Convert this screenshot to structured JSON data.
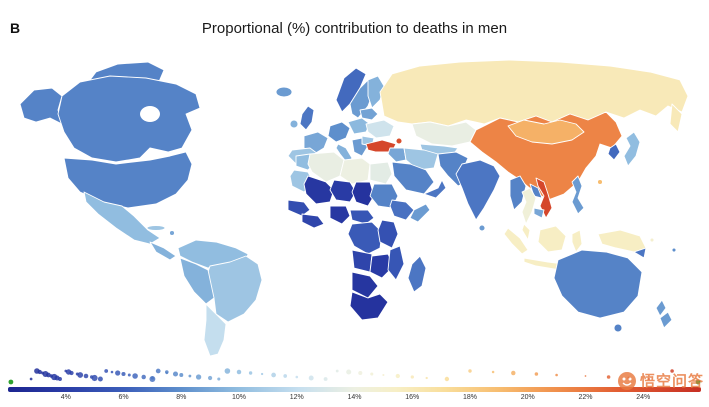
{
  "figure": {
    "panel_label": "B",
    "title": "Proportional (%) contribution to deaths in men"
  },
  "watermark": {
    "text": "悟空问答"
  },
  "chart_data": {
    "type": "heatmap",
    "subtype": "world-choropleth",
    "title": "Proportional (%) contribution to deaths in men",
    "unit": "%",
    "legend_position": "bottom",
    "colorbar": {
      "min": 2,
      "max": 26,
      "ticks": [
        "4%",
        "6%",
        "8%",
        "10%",
        "12%",
        "14%",
        "16%",
        "18%",
        "20%",
        "22%",
        "24%"
      ],
      "tick_values": [
        4,
        6,
        8,
        10,
        12,
        14,
        16,
        18,
        20,
        22,
        24
      ],
      "stops": [
        {
          "t": 0,
          "c": "#1C2590"
        },
        {
          "t": 0.08,
          "c": "#2A3CA6"
        },
        {
          "t": 0.17,
          "c": "#3C5FBA"
        },
        {
          "t": 0.25,
          "c": "#5E8FCC"
        },
        {
          "t": 0.33,
          "c": "#8FBCDF"
        },
        {
          "t": 0.42,
          "c": "#C6DFEF"
        },
        {
          "t": 0.5,
          "c": "#EDF0E2"
        },
        {
          "t": 0.56,
          "c": "#F7EFC6"
        },
        {
          "t": 0.63,
          "c": "#F9DE9B"
        },
        {
          "t": 0.71,
          "c": "#F7BC6F"
        },
        {
          "t": 0.79,
          "c": "#F0904C"
        },
        {
          "t": 0.88,
          "c": "#E25E33"
        },
        {
          "t": 1,
          "c": "#C62F23"
        }
      ],
      "end_marker_color": "#2FA12F"
    },
    "region_pct": {
      "greenland": 7.5,
      "alaska": 7.5,
      "canada": 7.5,
      "usa": 7.5,
      "mexico": 10,
      "central-america": 9.5,
      "cuba": 10.5,
      "hispaniola": 9,
      "colombia-venezuela": 10,
      "brazil": 10.5,
      "peru-bolivia": 9.5,
      "argentina-chile": 12,
      "iceland": 8.5,
      "uk": 7,
      "ireland": 9.5,
      "norway": 6.5,
      "sweden": 8.5,
      "finland": 9.5,
      "france": 9,
      "spain": 10.5,
      "germany": 8,
      "italy": 9.5,
      "balkans": 8.5,
      "poland": 9.8,
      "ukraine": 12.5,
      "belarus": 8.8,
      "romania": 10.5,
      "turkey": 24.5,
      "caucasus": 24,
      "russia": 16,
      "kazakhstan": 13.8,
      "central-asia": 10.5,
      "iraq-syria": 9,
      "iran": 10.5,
      "saudi-arabia": 7.5,
      "yemen-oman": 7,
      "afghanistan-pakistan": 7.5,
      "india": 7,
      "sri-lanka": 8.5,
      "china": 21.5,
      "mongolia": 19.5,
      "korea": 6.5,
      "japan": 10,
      "taiwan": 19,
      "myanmar": 7.5,
      "thailand": 14.5,
      "laos": 7.5,
      "vietnam": 24.5,
      "cambodia": 9,
      "malaysia": 15.5,
      "indonesia": 15.5,
      "new-guinea": 15.5,
      "png-se": 7,
      "philippines": 8.5,
      "morocco": 10,
      "algeria": 13.8,
      "libya": 14,
      "egypt": 13.5,
      "mauritania": 10.5,
      "mali": 3.5,
      "niger": 3.8,
      "chad": 3.2,
      "sudan": 7.5,
      "ethiopia": 6.8,
      "somalia": 8.5,
      "senegal-guinea": 5,
      "ghana-ivory": 4.5,
      "nigeria": 3.6,
      "cameroon-car": 5.5,
      "drc": 5.8,
      "east-africa": 5.2,
      "angola": 4.5,
      "zambia-zimbabwe": 3.8,
      "mozambique": 5.5,
      "namibia-botswana": 3.4,
      "south-africa": 3.2,
      "madagascar": 7,
      "australia": 7.5,
      "tasmania": 7.5,
      "new-zealand": 8.5,
      "solomon": 15,
      "fiji": 8
    },
    "distribution_pct": [
      2.8,
      3,
      3.1,
      3.2,
      3.3,
      3.4,
      3.5,
      3.6,
      3.7,
      3.8,
      4,
      4.1,
      4.2,
      4.4,
      4.5,
      4.7,
      4.9,
      5,
      5.2,
      5.4,
      5.6,
      5.8,
      6,
      6.2,
      6.4,
      6.7,
      7,
      7,
      7.2,
      7.5,
      7.5,
      7.8,
      8,
      8.3,
      8.6,
      9,
      9.3,
      9.6,
      10,
      10.4,
      10.8,
      11.2,
      11.6,
      12,
      12.5,
      13,
      13.4,
      13.8,
      14.2,
      14.6,
      15,
      15.5,
      16,
      16.5,
      17.2,
      18,
      18.8,
      19.5,
      20.3,
      21,
      22,
      22.8,
      23.5,
      24.2,
      25
    ]
  }
}
